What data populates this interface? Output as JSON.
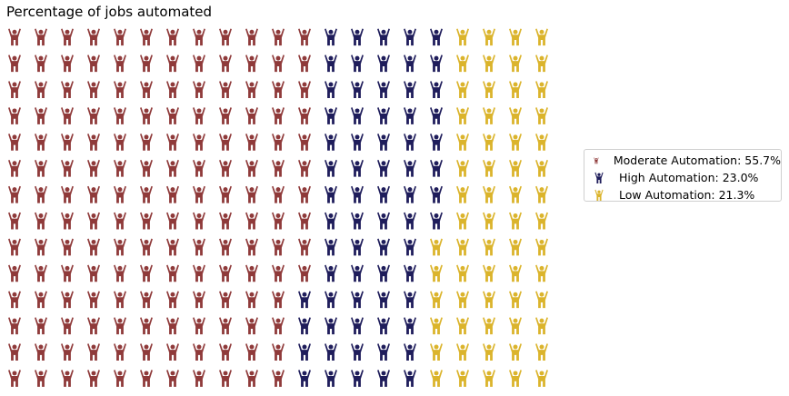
{
  "chart_data": {
    "type": "waffle",
    "title": "Percentage of jobs automated",
    "icon": "person-raising-hands-icon",
    "rows": 14,
    "columns": 21,
    "series": [
      {
        "name": "Moderate Automation: 55.7%",
        "value": 55.7,
        "count": 164,
        "color": "#8f3a3a"
      },
      {
        "name": "High Automation: 23.0%",
        "value": 23.0,
        "count": 68,
        "color": "#1f1d5b"
      },
      {
        "name": "Low Automation: 21.3%",
        "value": 21.3,
        "count": 62,
        "color": "#dbb42c"
      }
    ],
    "legend_position": "right"
  }
}
